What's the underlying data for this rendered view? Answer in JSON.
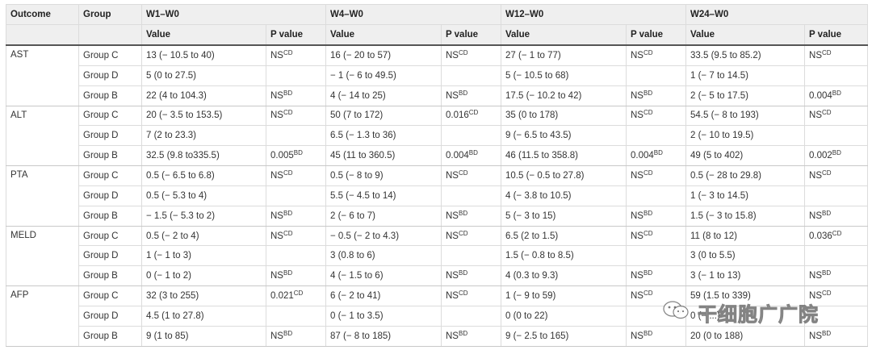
{
  "headers": {
    "outcome": "Outcome",
    "group": "Group",
    "periods": [
      "W1–W0",
      "W4–W0",
      "W12–W0",
      "W24–W0"
    ],
    "value": "Value",
    "pvalue": "P value"
  },
  "rows": [
    {
      "outcome": "AST",
      "group": "Group C",
      "cells": [
        [
          "13 (− 10.5 to 40)",
          "NS",
          "CD"
        ],
        [
          "16 (− 20 to 57)",
          "NS",
          "CD"
        ],
        [
          "27 (− 1 to 77)",
          "NS",
          "CD"
        ],
        [
          "33.5 (9.5 to 85.2)",
          "NS",
          "CD"
        ]
      ]
    },
    {
      "outcome": "",
      "group": "Group D",
      "cells": [
        [
          "5 (0 to 27.5)",
          "",
          ""
        ],
        [
          "− 1 (− 6 to 49.5)",
          "",
          ""
        ],
        [
          "5 (− 10.5 to 68)",
          "",
          ""
        ],
        [
          "1 (− 7 to 14.5)",
          "",
          ""
        ]
      ]
    },
    {
      "outcome": "",
      "group": "Group B",
      "cells": [
        [
          "22 (4 to 104.3)",
          "NS",
          "BD"
        ],
        [
          "4 (− 14 to 25)",
          "NS",
          "BD"
        ],
        [
          "17.5 (− 10.2 to 42)",
          "NS",
          "BD"
        ],
        [
          "2 (− 5 to 17.5)",
          "0.004",
          "BD"
        ]
      ]
    },
    {
      "outcome": "ALT",
      "group": "Group C",
      "cells": [
        [
          "20 (− 3.5 to 153.5)",
          "NS",
          "CD"
        ],
        [
          "50 (7 to 172)",
          "0.016",
          "CD"
        ],
        [
          "35 (0 to 178)",
          "NS",
          "CD"
        ],
        [
          "54.5 (− 8 to 193)",
          "NS",
          "CD"
        ]
      ]
    },
    {
      "outcome": "",
      "group": "Group D",
      "cells": [
        [
          "7 (2 to 23.3)",
          "",
          ""
        ],
        [
          "6.5 (− 1.3 to 36)",
          "",
          ""
        ],
        [
          "9 (− 6.5 to 43.5)",
          "",
          ""
        ],
        [
          "2 (− 10 to 19.5)",
          "",
          ""
        ]
      ]
    },
    {
      "outcome": "",
      "group": "Group B",
      "cells": [
        [
          "32.5 (9.8 to335.5)",
          "0.005",
          "BD"
        ],
        [
          "45 (11 to 360.5)",
          "0.004",
          "BD"
        ],
        [
          "46 (11.5 to 358.8)",
          "0.004",
          "BD"
        ],
        [
          "49 (5 to 402)",
          "0.002",
          "BD"
        ]
      ]
    },
    {
      "outcome": "PTA",
      "group": "Group C",
      "cells": [
        [
          "0.5 (− 6.5 to 6.8)",
          "NS",
          "CD"
        ],
        [
          "0.5 (− 8 to 9)",
          "NS",
          "CD"
        ],
        [
          "10.5 (− 0.5 to 27.8)",
          "NS",
          "CD"
        ],
        [
          "0.5 (− 28 to 29.8)",
          "NS",
          "CD"
        ]
      ]
    },
    {
      "outcome": "",
      "group": "Group D",
      "cells": [
        [
          "0.5 (− 5.3 to 4)",
          "",
          ""
        ],
        [
          "5.5 (− 4.5 to 14)",
          "",
          ""
        ],
        [
          "4 (− 3.8 to 10.5)",
          "",
          ""
        ],
        [
          "1 (− 3 to 14.5)",
          "",
          ""
        ]
      ]
    },
    {
      "outcome": "",
      "group": "Group B",
      "cells": [
        [
          "− 1.5 (− 5.3 to 2)",
          "NS",
          "BD"
        ],
        [
          "2 (− 6 to 7)",
          "NS",
          "BD"
        ],
        [
          "5 (− 3 to 15)",
          "NS",
          "BD"
        ],
        [
          "1.5 (− 3 to 15.8)",
          "NS",
          "BD"
        ]
      ]
    },
    {
      "outcome": "MELD",
      "group": "Group C",
      "cells": [
        [
          "0.5 (− 2 to 4)",
          "NS",
          "CD"
        ],
        [
          "− 0.5 (− 2 to 4.3)",
          "NS",
          "CD"
        ],
        [
          "6.5 (2 to 1.5)",
          "NS",
          "CD"
        ],
        [
          "11 (8 to 12)",
          "0.036",
          "CD"
        ]
      ]
    },
    {
      "outcome": "",
      "group": "Group D",
      "cells": [
        [
          "1 (− 1 to 3)",
          "",
          ""
        ],
        [
          "3 (0.8 to 6)",
          "",
          ""
        ],
        [
          "1.5 (− 0.8 to 8.5)",
          "",
          ""
        ],
        [
          "3 (0 to 5.5)",
          "",
          ""
        ]
      ]
    },
    {
      "outcome": "",
      "group": "Group B",
      "cells": [
        [
          "0 (− 1 to 2)",
          "NS",
          "BD"
        ],
        [
          "4 (− 1.5 to 6)",
          "NS",
          "BD"
        ],
        [
          "4 (0.3 to 9.3)",
          "NS",
          "BD"
        ],
        [
          "3 (− 1 to 13)",
          "NS",
          "BD"
        ]
      ]
    },
    {
      "outcome": "AFP",
      "group": "Group C",
      "cells": [
        [
          "32 (3 to 255)",
          "0.021",
          "CD"
        ],
        [
          "6 (− 2 to 41)",
          "NS",
          "CD"
        ],
        [
          "1 (− 9 to 59)",
          "NS",
          "CD"
        ],
        [
          "59 (1.5 to 339)",
          "NS",
          "CD"
        ]
      ]
    },
    {
      "outcome": "",
      "group": "Group D",
      "cells": [
        [
          "4.5 (1 to 27.8)",
          "",
          ""
        ],
        [
          "0 (− 1 to 3.5)",
          "",
          ""
        ],
        [
          "0 (0 to 22)",
          "",
          ""
        ],
        [
          "0 (− ...)",
          "",
          ""
        ]
      ]
    },
    {
      "outcome": "",
      "group": "Group B",
      "cells": [
        [
          "9 (1 to 85)",
          "NS",
          "BD"
        ],
        [
          "87 (− 8 to 185)",
          "NS",
          "BD"
        ],
        [
          "9 (− 2.5 to 165)",
          "NS",
          "BD"
        ],
        [
          "20 (0 to 188)",
          "NS",
          "BD"
        ]
      ]
    }
  ],
  "watermark": {
    "text": "干细胞广广院",
    "icon": "wechat-logo-icon"
  }
}
